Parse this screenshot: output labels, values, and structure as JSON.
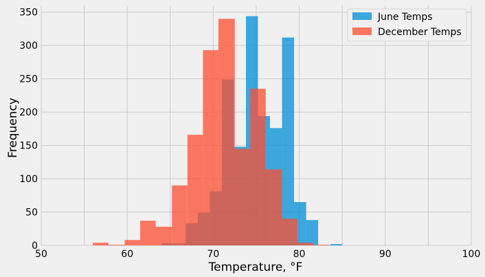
{
  "chart_data": {
    "type": "bar",
    "style": "histogram",
    "title": "",
    "xlabel": "Temperature, °F",
    "ylabel": "Frequency",
    "xlim": [
      50,
      100
    ],
    "ylim": [
      0,
      360
    ],
    "xticks": [
      50,
      60,
      70,
      80,
      90,
      100
    ],
    "yticks": [
      0,
      50,
      100,
      150,
      200,
      250,
      300,
      350
    ],
    "grid": true,
    "legend_position": "top-right",
    "series": [
      {
        "name": "June Temps",
        "color": "#008fd5",
        "opacity": 0.75,
        "bins": [
          {
            "x0": 64.0,
            "x1": 65.4,
            "count": 3
          },
          {
            "x0": 65.4,
            "x1": 66.8,
            "count": 3
          },
          {
            "x0": 66.8,
            "x1": 68.2,
            "count": 33
          },
          {
            "x0": 68.2,
            "x1": 69.6,
            "count": 49
          },
          {
            "x0": 69.6,
            "x1": 71.0,
            "count": 81
          },
          {
            "x0": 71.0,
            "x1": 72.4,
            "count": 249
          },
          {
            "x0": 72.4,
            "x1": 73.8,
            "count": 148
          },
          {
            "x0": 73.8,
            "x1": 75.2,
            "count": 344
          },
          {
            "x0": 75.2,
            "x1": 76.6,
            "count": 194
          },
          {
            "x0": 76.6,
            "x1": 78.0,
            "count": 176
          },
          {
            "x0": 78.0,
            "x1": 79.4,
            "count": 312
          },
          {
            "x0": 79.4,
            "x1": 80.8,
            "count": 65
          },
          {
            "x0": 80.8,
            "x1": 82.2,
            "count": 38
          },
          {
            "x0": 83.6,
            "x1": 85.0,
            "count": 2
          }
        ]
      },
      {
        "name": "December Temps",
        "color": "#fc4f30",
        "opacity": 0.75,
        "bins": [
          {
            "x0": 56.0,
            "x1": 57.8,
            "count": 4
          },
          {
            "x0": 57.8,
            "x1": 59.7,
            "count": 1
          },
          {
            "x0": 59.7,
            "x1": 61.5,
            "count": 8
          },
          {
            "x0": 61.5,
            "x1": 63.3,
            "count": 37
          },
          {
            "x0": 63.3,
            "x1": 65.2,
            "count": 28
          },
          {
            "x0": 65.2,
            "x1": 67.0,
            "count": 90
          },
          {
            "x0": 67.0,
            "x1": 68.8,
            "count": 166
          },
          {
            "x0": 68.8,
            "x1": 70.6,
            "count": 293
          },
          {
            "x0": 70.6,
            "x1": 72.5,
            "count": 340
          },
          {
            "x0": 72.5,
            "x1": 74.3,
            "count": 145
          },
          {
            "x0": 74.3,
            "x1": 76.1,
            "count": 235
          },
          {
            "x0": 76.1,
            "x1": 78.0,
            "count": 114
          },
          {
            "x0": 78.0,
            "x1": 79.8,
            "count": 40
          },
          {
            "x0": 79.8,
            "x1": 81.6,
            "count": 4
          },
          {
            "x0": 81.6,
            "x1": 83.5,
            "count": 1
          }
        ]
      }
    ]
  }
}
